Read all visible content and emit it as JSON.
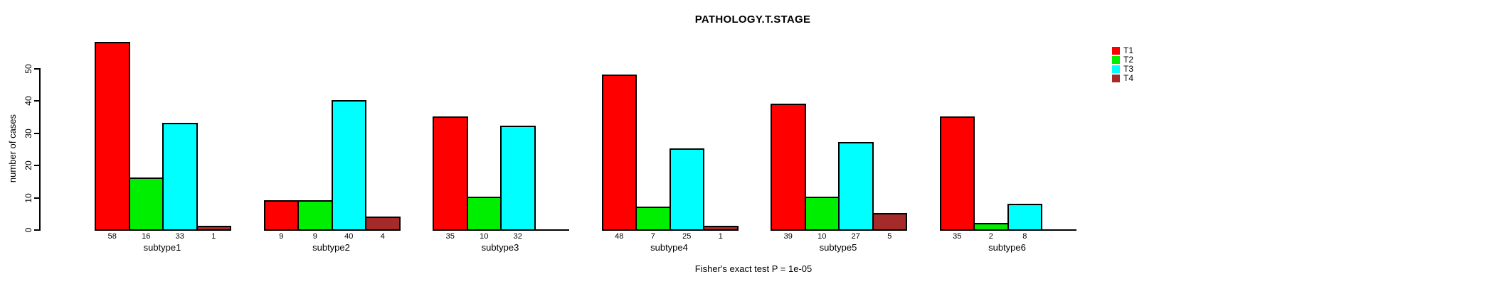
{
  "title": "PATHOLOGY.T.STAGE",
  "footer": "Fisher's exact test P = 1e-05",
  "chart_data": {
    "type": "bar",
    "title": "PATHOLOGY.T.STAGE",
    "xlabel": "",
    "ylabel": "number of cases",
    "categories": [
      "subtype1",
      "subtype2",
      "subtype3",
      "subtype4",
      "subtype5",
      "subtype6"
    ],
    "series": [
      {
        "name": "T1",
        "color": "#FF0000",
        "values": [
          58,
          9,
          35,
          48,
          39,
          35
        ]
      },
      {
        "name": "T2",
        "color": "#00EE00",
        "values": [
          16,
          9,
          10,
          7,
          10,
          2
        ]
      },
      {
        "name": "T3",
        "color": "#00FFFF",
        "values": [
          33,
          40,
          32,
          25,
          27,
          8
        ]
      },
      {
        "name": "T4",
        "color": "#A52A2A",
        "values": [
          1,
          4,
          0,
          1,
          5,
          0
        ]
      }
    ],
    "ylim": [
      0,
      50
    ],
    "yticks": [
      0,
      10,
      20,
      30,
      40,
      50
    ],
    "grid": false,
    "legend_position": "right",
    "annotation": "Fisher's exact test P = 1e-05",
    "value_labels_under_bars": true
  }
}
